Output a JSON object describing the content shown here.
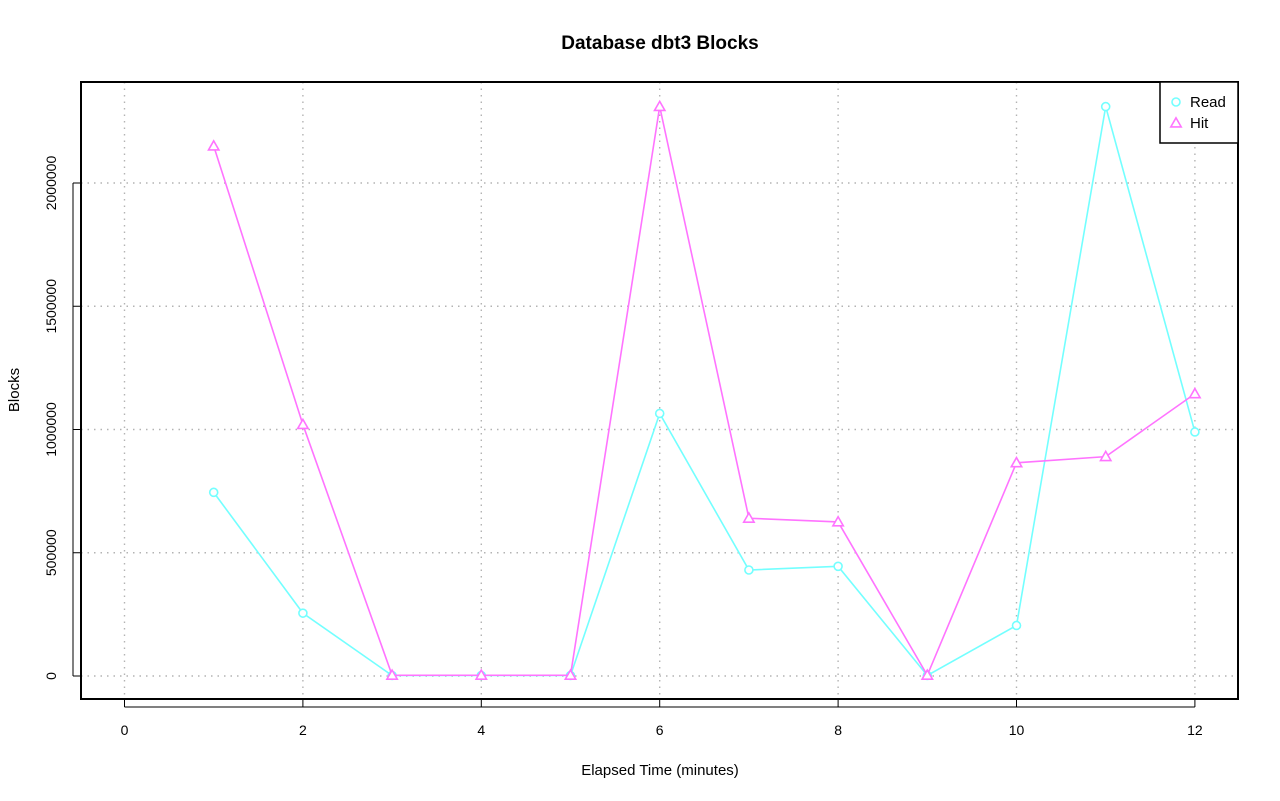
{
  "chart_data": {
    "type": "line",
    "title": "Database dbt3 Blocks",
    "xlabel": "Elapsed Time (minutes)",
    "ylabel": "Blocks",
    "xlim": [
      0,
      12
    ],
    "ylim": [
      0,
      2300000
    ],
    "xticks": [
      0,
      2,
      4,
      6,
      8,
      10,
      12
    ],
    "yticks": [
      0,
      500000,
      1000000,
      1500000,
      2000000
    ],
    "grid": true,
    "legend_position": "top-right",
    "x": [
      1,
      2,
      3,
      4,
      5,
      6,
      7,
      8,
      9,
      10,
      11,
      12
    ],
    "series": [
      {
        "name": "Read",
        "color": "#73ffff",
        "marker": "circle",
        "values": [
          745000,
          255000,
          2000,
          2000,
          2000,
          1065000,
          430000,
          445000,
          2000,
          205000,
          2310000,
          990000
        ]
      },
      {
        "name": "Hit",
        "color": "#ff73ff",
        "marker": "triangle",
        "values": [
          2150000,
          1020000,
          3000,
          3000,
          3000,
          2310000,
          640000,
          625000,
          3000,
          865000,
          890000,
          1145000
        ]
      }
    ]
  }
}
